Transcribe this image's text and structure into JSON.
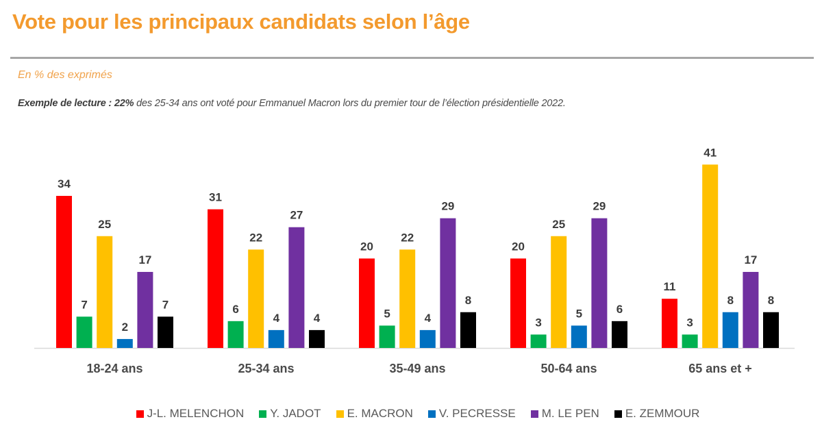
{
  "header": {
    "title": "Vote pour les principaux candidats selon l’âge",
    "subtitle": "En % des exprimés",
    "reading_example": {
      "lead": "Exemple de lecture : ",
      "highlight": "22%",
      "rest": " des 25-34 ans ont voté pour Emmanuel Macron lors du premier tour de l’élection présidentielle 2022."
    }
  },
  "chart_data": {
    "type": "bar",
    "title": "Vote pour les principaux candidats selon l’âge",
    "subtitle": "En % des exprimés",
    "xlabel": "",
    "ylabel": "En % des exprimés",
    "ylim": [
      0,
      41
    ],
    "grid": false,
    "legend_position": "bottom",
    "categories": [
      "18-24 ans",
      "25-34 ans",
      "35-49 ans",
      "50-64 ans",
      "65 ans et +"
    ],
    "series": [
      {
        "name": "J-L. MELENCHON",
        "color": "#FF0000",
        "values": [
          34,
          31,
          20,
          20,
          11
        ]
      },
      {
        "name": "Y. JADOT",
        "color": "#00B050",
        "values": [
          7,
          6,
          5,
          3,
          3
        ]
      },
      {
        "name": "E. MACRON",
        "color": "#FFC000",
        "values": [
          25,
          22,
          22,
          25,
          41
        ]
      },
      {
        "name": "V. PECRESSE",
        "color": "#0070C0",
        "values": [
          2,
          4,
          4,
          5,
          8
        ]
      },
      {
        "name": "M. LE PEN",
        "color": "#7030A0",
        "values": [
          17,
          27,
          29,
          29,
          17
        ]
      },
      {
        "name": "E. ZEMMOUR",
        "color": "#000000",
        "values": [
          7,
          4,
          8,
          6,
          8
        ]
      }
    ]
  }
}
